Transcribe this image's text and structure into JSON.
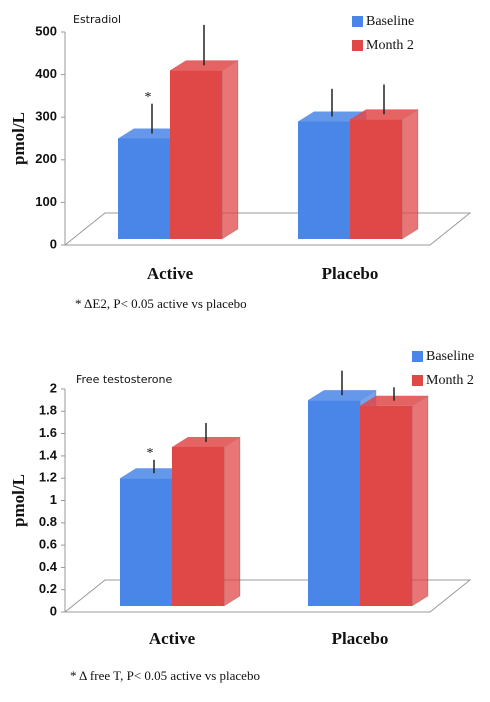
{
  "chart_data": [
    {
      "type": "bar",
      "title": "Estradiol",
      "y_label": "pmol/L",
      "categories": [
        "Active",
        "Placebo"
      ],
      "series": [
        {
          "name": "Baseline",
          "color": "#4a86e8",
          "values": [
            250,
            290
          ],
          "errors": [
            70,
            65
          ]
        },
        {
          "name": "Month 2",
          "color": "#e04848",
          "values": [
            410,
            295
          ],
          "errors": [
            95,
            70
          ]
        }
      ],
      "ylim": [
        0,
        500
      ],
      "yticks": [
        0,
        100,
        200,
        300,
        400,
        500
      ],
      "annotation": "*",
      "footnote": "* ΔE2, P< 0.05 active vs placebo"
    },
    {
      "type": "bar",
      "title": "Free  testosterone",
      "y_label": "pmol/L",
      "categories": [
        "Active",
        "Placebo"
      ],
      "series": [
        {
          "name": "Baseline",
          "color": "#4a86e8",
          "values": [
            1.2,
            1.9
          ],
          "errors": [
            0.12,
            0.22
          ]
        },
        {
          "name": "Month 2",
          "color": "#e04848",
          "values": [
            1.48,
            1.85
          ],
          "errors": [
            0.17,
            0.12
          ]
        }
      ],
      "ylim": [
        0,
        2
      ],
      "yticks": [
        0,
        0.2,
        0.4,
        0.6,
        0.8,
        1,
        1.2,
        1.4,
        1.6,
        1.8,
        2
      ],
      "annotation": "*",
      "footnote": "* Δ free T,  P< 0.05 active vs placebo"
    }
  ]
}
